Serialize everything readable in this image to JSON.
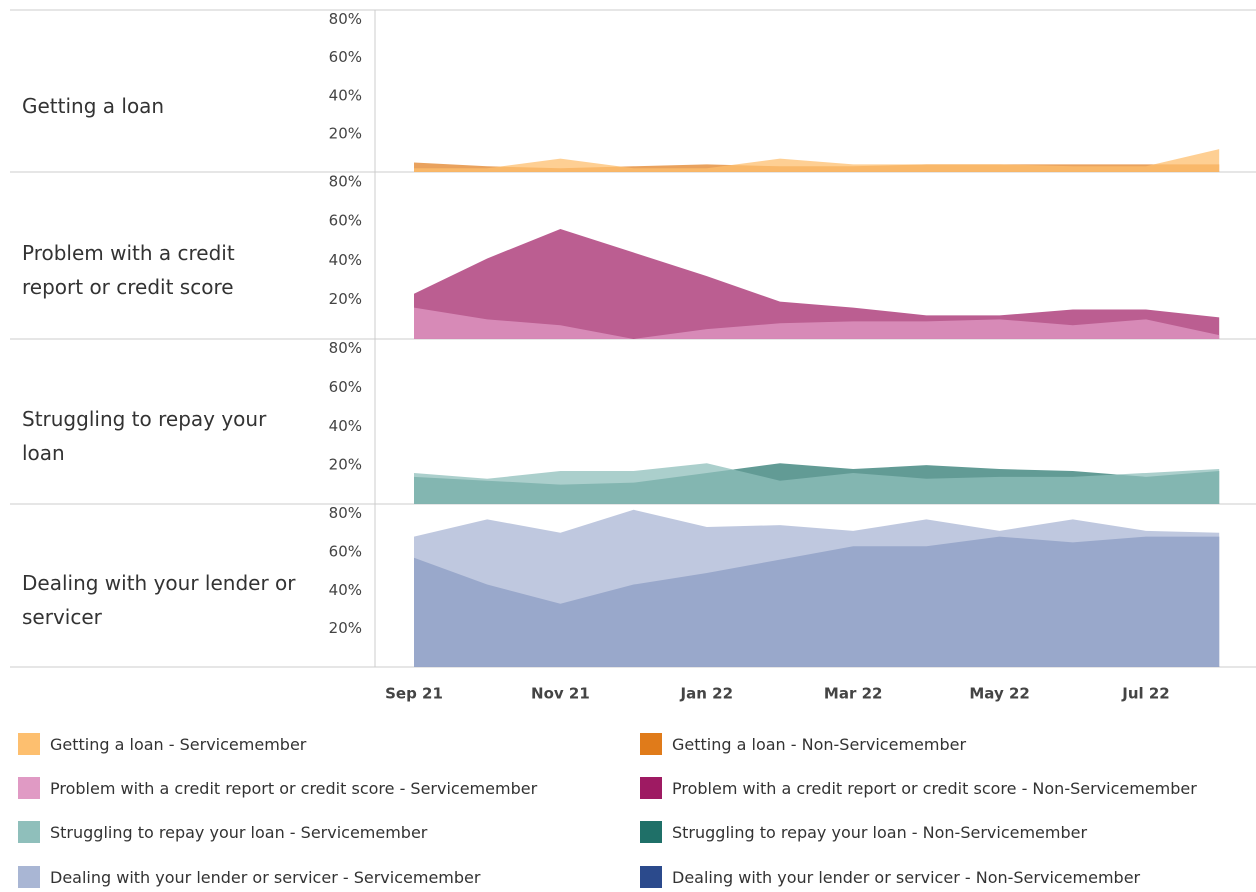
{
  "chart_data": {
    "type": "area",
    "categories": [
      "Sep 21",
      null,
      "Nov 21",
      null,
      "Jan 22",
      null,
      "Mar 22",
      null,
      "May 22",
      null,
      "Jul 22",
      null
    ],
    "ylim": [
      0,
      85
    ],
    "yticks": [
      {
        "value": 20,
        "label": "20%"
      },
      {
        "value": 40,
        "label": "40%"
      },
      {
        "value": 60,
        "label": "60%"
      },
      {
        "value": 80,
        "label": "80%"
      }
    ],
    "grid": false,
    "panels": [
      {
        "title": "Getting a loan",
        "series": [
          {
            "name": "Getting a loan - Servicemember",
            "color": "#fdbf6f",
            "values": [
              2,
              2,
              7,
              2,
              2,
              7,
              4,
              4,
              4,
              3,
              3,
              12
            ]
          },
          {
            "name": "Getting a loan - Non-Servicemember",
            "color": "#e07b1a",
            "values": [
              5,
              3,
              2,
              3,
              4,
              3,
              3,
              4,
              4,
              4,
              4,
              4
            ]
          }
        ]
      },
      {
        "title": "Problem with a credit report or credit score",
        "series": [
          {
            "name": "Problem with a credit report or credit score - Servicemember",
            "color": "#e09ac4",
            "values": [
              16,
              10,
              7,
              0,
              5,
              8,
              9,
              9,
              10,
              7,
              10,
              2
            ]
          },
          {
            "name": "Problem with a credit report or credit score - Non-Servicemember",
            "color": "#9e1a62",
            "values": [
              23,
              41,
              56,
              44,
              32,
              19,
              16,
              12,
              12,
              15,
              15,
              11
            ]
          }
        ]
      },
      {
        "title": "Struggling to repay your loan",
        "series": [
          {
            "name": "Struggling to repay your loan - Servicemember",
            "color": "#8fbfbb",
            "values": [
              16,
              13,
              17,
              17,
              21,
              12,
              16,
              13,
              14,
              14,
              16,
              18
            ]
          },
          {
            "name": "Struggling to repay your loan - Non-Servicemember",
            "color": "#1f7068",
            "values": [
              14,
              12,
              10,
              11,
              16,
              21,
              18,
              20,
              18,
              17,
              14,
              17
            ]
          }
        ]
      },
      {
        "title": "Dealing with your lender or servicer",
        "series": [
          {
            "name": "Dealing with your lender or servicer - Servicemember",
            "color": "#a9b6d4",
            "values": [
              68,
              77,
              70,
              82,
              73,
              74,
              71,
              77,
              71,
              77,
              71,
              70
            ]
          },
          {
            "name": "Dealing with your lender or servicer - Non-Servicemember",
            "color": "#2b4a8c",
            "values": [
              57,
              43,
              33,
              43,
              49,
              56,
              63,
              63,
              68,
              65,
              68,
              68
            ]
          }
        ]
      }
    ]
  }
}
